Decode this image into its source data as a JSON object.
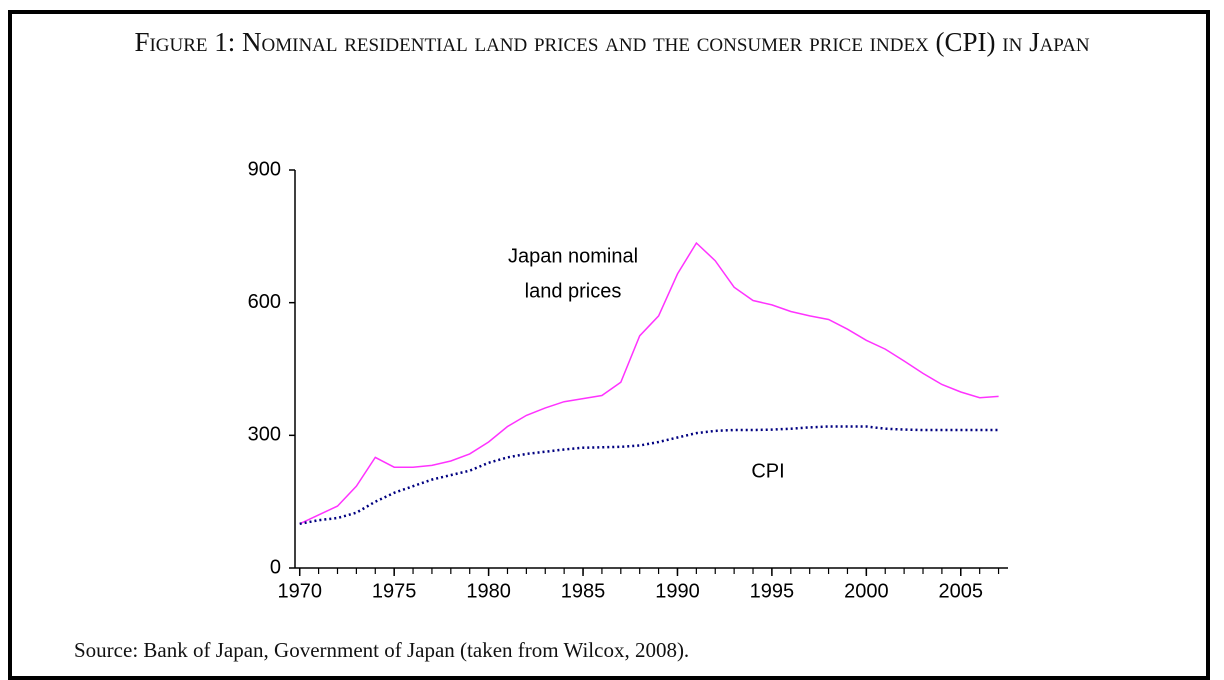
{
  "chart_data": {
    "type": "line",
    "title": "Figure 1: Nominal residential land prices and the consumer price index (CPI) in Japan",
    "source": "Source: Bank of Japan, Government of Japan (taken from Wilcox, 2008).",
    "annotations": [
      {
        "lines": [
          "Japan nominal",
          "land prices"
        ]
      },
      {
        "lines": [
          "CPI"
        ]
      }
    ],
    "x": [
      1970,
      1971,
      1972,
      1973,
      1974,
      1975,
      1976,
      1977,
      1978,
      1979,
      1980,
      1981,
      1982,
      1983,
      1984,
      1985,
      1986,
      1987,
      1988,
      1989,
      1990,
      1991,
      1992,
      1993,
      1994,
      1995,
      1996,
      1997,
      1998,
      1999,
      2000,
      2001,
      2002,
      2003,
      2004,
      2005,
      2006,
      2007
    ],
    "series": [
      {
        "color": "#ff33ff",
        "style": "solid",
        "values": [
          100,
          120,
          140,
          185,
          250,
          228,
          228,
          232,
          242,
          258,
          285,
          320,
          345,
          362,
          376,
          383,
          390,
          420,
          525,
          570,
          665,
          735,
          695,
          635,
          605,
          595,
          580,
          570,
          562,
          540,
          515,
          495,
          468,
          440,
          415,
          398,
          385,
          388
        ]
      },
      {
        "color": "#000080",
        "style": "dotted",
        "values": [
          100,
          108,
          113,
          125,
          150,
          170,
          185,
          200,
          210,
          220,
          238,
          250,
          258,
          263,
          268,
          272,
          273,
          274,
          277,
          285,
          295,
          305,
          310,
          312,
          312,
          313,
          315,
          318,
          320,
          320,
          320,
          315,
          313,
          312,
          312,
          312,
          312,
          312
        ]
      }
    ],
    "xlim": [
      1969.75,
      2007.5
    ],
    "xticks": [
      1970,
      1975,
      1980,
      1985,
      1990,
      1995,
      2000,
      2005
    ],
    "ylim": [
      0,
      900
    ],
    "yticks": [
      0,
      300,
      600,
      900
    ]
  }
}
